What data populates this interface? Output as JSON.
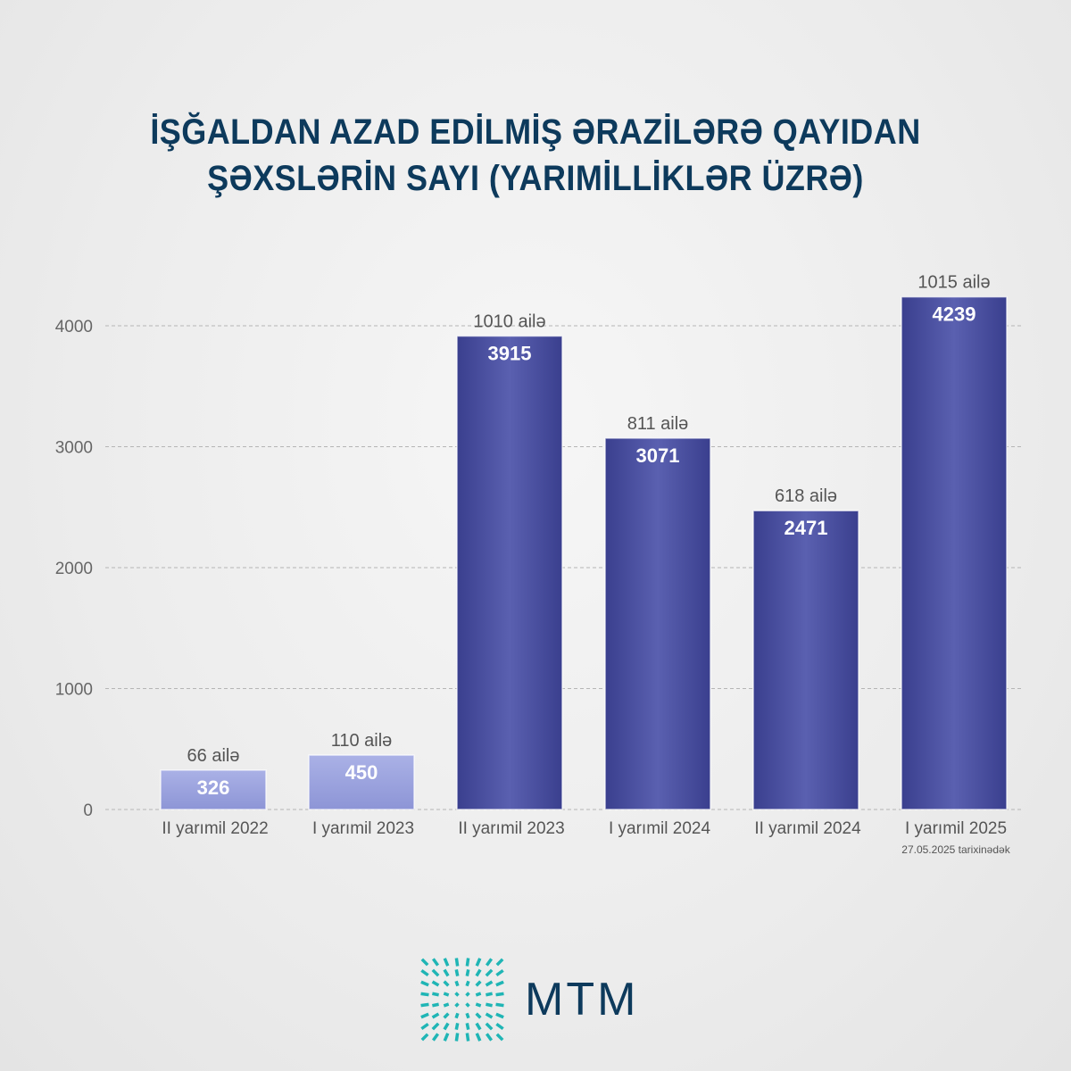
{
  "title": {
    "line1": "İŞĞALDAN AZAD EDİLMİŞ ƏRAZİLƏRƏ QAYIDAN",
    "line2": "ŞƏXSLƏRİN SAYI (YARIMİLLİKLƏR ÜZRƏ)"
  },
  "chart_data": {
    "type": "bar",
    "title": "İŞĞALDAN AZAD EDİLMİŞ ƏRAZİLƏRƏ QAYIDAN ŞƏXSLƏRİN SAYI (YARIMİLLİKLƏR ÜZRƏ)",
    "categories": [
      "II yarımil 2022",
      "I yarımil 2023",
      "II yarımil 2023",
      "I yarımil 2024",
      "II yarımil 2024",
      "I yarımil 2025"
    ],
    "category_note": "27.05.2025 tarixinədək",
    "values": [
      326,
      450,
      3915,
      3071,
      2471,
      4239
    ],
    "families": [
      "66 ailə",
      "110 ailə",
      "1010 ailə",
      "811 ailə",
      "618 ailə",
      "1015 ailə"
    ],
    "yticks": [
      0,
      1000,
      2000,
      3000,
      4000
    ],
    "ylim": [
      0,
      4000
    ],
    "grid": true,
    "xlabel": "",
    "ylabel": "",
    "colors": {
      "light": "#a7aee4",
      "dark": "#474c9d"
    }
  },
  "logo": {
    "text": "MTM"
  }
}
